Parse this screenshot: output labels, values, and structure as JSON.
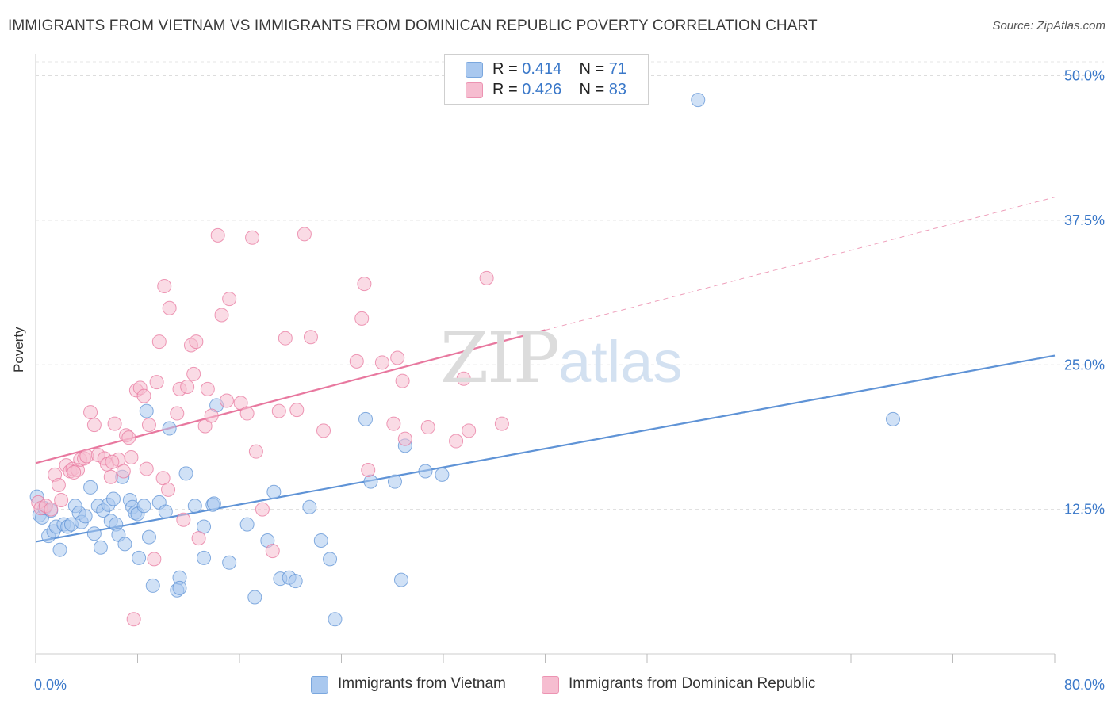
{
  "header": {
    "title": "IMMIGRANTS FROM VIETNAM VS IMMIGRANTS FROM DOMINICAN REPUBLIC POVERTY CORRELATION CHART",
    "source": "Source: ZipAtlas.com"
  },
  "watermark": {
    "zip": "ZIP",
    "atlas": "atlas"
  },
  "legend": {
    "rows": [
      {
        "r_label": "R =",
        "r_value": "0.414",
        "n_label": "N =",
        "n_value": "71",
        "color": "#a9c8ef",
        "stroke": "#7aa7de"
      },
      {
        "r_label": "R =",
        "r_value": "0.426",
        "n_label": "N =",
        "n_value": "83",
        "color": "#f6bdd0",
        "stroke": "#ec93b2"
      }
    ]
  },
  "bottom_legend": [
    {
      "label": "Immigrants from Vietnam",
      "color": "#a9c8ef",
      "stroke": "#7aa7de"
    },
    {
      "label": "Immigrants from Dominican Republic",
      "color": "#f6bdd0",
      "stroke": "#ec93b2"
    }
  ],
  "chart_data": {
    "type": "scatter",
    "title": "IMMIGRANTS FROM VIETNAM VS IMMIGRANTS FROM DOMINICAN REPUBLIC POVERTY CORRELATION CHART",
    "ylabel": "Poverty",
    "xlabel": "",
    "xlim": [
      0,
      80
    ],
    "ylim": [
      0,
      51.2
    ],
    "x_tick_labels": [
      "0.0%",
      "80.0%"
    ],
    "y_ticks": [
      12.5,
      25.0,
      37.5,
      50.0
    ],
    "y_tick_labels": [
      "12.5%",
      "25.0%",
      "37.5%",
      "50.0%"
    ],
    "grid": true,
    "legend_position": "top-center",
    "series": [
      {
        "name": "Immigrants from Vietnam",
        "color": "#5f93d6",
        "fill": "#a9c8ef",
        "trend": {
          "x0": 0,
          "y0": 9.7,
          "x1": 80,
          "y1": 25.8,
          "dashed_from": null
        },
        "points": [
          [
            0.1,
            13.6
          ],
          [
            0.3,
            12.0
          ],
          [
            0.5,
            11.8
          ],
          [
            0.7,
            12.6
          ],
          [
            1.0,
            10.2
          ],
          [
            1.2,
            12.4
          ],
          [
            1.4,
            10.6
          ],
          [
            1.6,
            11.0
          ],
          [
            1.9,
            9.0
          ],
          [
            2.2,
            11.2
          ],
          [
            2.5,
            11.0
          ],
          [
            2.8,
            11.2
          ],
          [
            3.1,
            12.8
          ],
          [
            3.4,
            12.2
          ],
          [
            3.6,
            11.4
          ],
          [
            3.9,
            11.9
          ],
          [
            4.3,
            14.4
          ],
          [
            4.6,
            10.4
          ],
          [
            4.9,
            12.8
          ],
          [
            5.1,
            9.2
          ],
          [
            5.3,
            12.4
          ],
          [
            5.7,
            12.9
          ],
          [
            5.9,
            11.5
          ],
          [
            6.1,
            13.4
          ],
          [
            6.3,
            11.2
          ],
          [
            6.5,
            10.3
          ],
          [
            6.8,
            15.3
          ],
          [
            7.0,
            9.5
          ],
          [
            7.4,
            13.3
          ],
          [
            7.6,
            12.7
          ],
          [
            7.8,
            12.2
          ],
          [
            8.0,
            12.1
          ],
          [
            8.1,
            8.3
          ],
          [
            8.5,
            12.8
          ],
          [
            8.9,
            10.1
          ],
          [
            9.2,
            5.9
          ],
          [
            9.7,
            13.1
          ],
          [
            10.2,
            12.3
          ],
          [
            10.5,
            19.5
          ],
          [
            11.1,
            5.5
          ],
          [
            11.3,
            6.6
          ],
          [
            11.3,
            5.7
          ],
          [
            11.8,
            15.6
          ],
          [
            12.5,
            12.8
          ],
          [
            13.2,
            11.0
          ],
          [
            13.2,
            8.3
          ],
          [
            13.9,
            12.9
          ],
          [
            14.0,
            13.0
          ],
          [
            14.2,
            21.5
          ],
          [
            15.2,
            7.9
          ],
          [
            16.6,
            11.2
          ],
          [
            17.2,
            4.9
          ],
          [
            18.2,
            9.8
          ],
          [
            18.7,
            14.0
          ],
          [
            19.2,
            6.5
          ],
          [
            19.9,
            6.6
          ],
          [
            20.4,
            6.3
          ],
          [
            21.5,
            12.7
          ],
          [
            22.4,
            9.8
          ],
          [
            23.1,
            8.2
          ],
          [
            23.5,
            3.0
          ],
          [
            25.9,
            20.3
          ],
          [
            26.3,
            14.9
          ],
          [
            28.2,
            14.9
          ],
          [
            28.7,
            6.4
          ],
          [
            29.0,
            18.0
          ],
          [
            30.6,
            15.8
          ],
          [
            31.9,
            15.5
          ],
          [
            52.0,
            47.9
          ],
          [
            67.3,
            20.3
          ],
          [
            8.7,
            21.0
          ]
        ]
      },
      {
        "name": "Immigrants from Dominican Republic",
        "color": "#e8789f",
        "fill": "#f6bdd0",
        "trend": {
          "x0": 0,
          "y0": 16.5,
          "x1": 80,
          "y1": 39.5,
          "dashed_from": 40
        },
        "points": [
          [
            0.2,
            13.1
          ],
          [
            0.4,
            12.6
          ],
          [
            0.8,
            12.8
          ],
          [
            1.2,
            12.5
          ],
          [
            1.5,
            15.5
          ],
          [
            1.8,
            14.6
          ],
          [
            2.0,
            13.3
          ],
          [
            2.4,
            16.3
          ],
          [
            2.7,
            15.8
          ],
          [
            2.9,
            16.0
          ],
          [
            3.3,
            15.9
          ],
          [
            3.5,
            16.8
          ],
          [
            3.8,
            16.9
          ],
          [
            4.0,
            17.1
          ],
          [
            4.3,
            20.9
          ],
          [
            4.6,
            19.8
          ],
          [
            4.9,
            17.2
          ],
          [
            5.4,
            16.9
          ],
          [
            5.6,
            16.4
          ],
          [
            5.9,
            15.3
          ],
          [
            6.2,
            19.9
          ],
          [
            6.5,
            16.8
          ],
          [
            6.9,
            15.8
          ],
          [
            7.1,
            18.9
          ],
          [
            7.3,
            18.7
          ],
          [
            7.5,
            17.0
          ],
          [
            7.7,
            3.0
          ],
          [
            7.9,
            22.8
          ],
          [
            8.2,
            23.0
          ],
          [
            8.5,
            22.3
          ],
          [
            8.7,
            16.0
          ],
          [
            8.9,
            19.8
          ],
          [
            9.3,
            8.2
          ],
          [
            9.5,
            23.5
          ],
          [
            9.7,
            27.0
          ],
          [
            10.0,
            15.2
          ],
          [
            10.1,
            31.8
          ],
          [
            10.4,
            14.2
          ],
          [
            10.5,
            29.9
          ],
          [
            11.1,
            20.8
          ],
          [
            11.3,
            22.9
          ],
          [
            11.6,
            11.6
          ],
          [
            11.9,
            23.1
          ],
          [
            12.2,
            26.7
          ],
          [
            12.4,
            24.2
          ],
          [
            12.6,
            27.0
          ],
          [
            12.8,
            10.0
          ],
          [
            13.3,
            19.7
          ],
          [
            13.5,
            22.9
          ],
          [
            13.8,
            20.6
          ],
          [
            14.3,
            36.2
          ],
          [
            14.6,
            29.3
          ],
          [
            15.0,
            21.9
          ],
          [
            15.2,
            30.7
          ],
          [
            16.1,
            21.7
          ],
          [
            16.6,
            20.8
          ],
          [
            17.0,
            36.0
          ],
          [
            17.3,
            17.5
          ],
          [
            17.8,
            12.5
          ],
          [
            18.6,
            8.9
          ],
          [
            19.1,
            21.0
          ],
          [
            19.6,
            27.3
          ],
          [
            20.5,
            21.1
          ],
          [
            21.1,
            36.3
          ],
          [
            21.6,
            27.4
          ],
          [
            22.6,
            19.3
          ],
          [
            25.2,
            25.3
          ],
          [
            25.6,
            29.0
          ],
          [
            25.8,
            32.0
          ],
          [
            26.1,
            15.9
          ],
          [
            27.2,
            25.2
          ],
          [
            28.1,
            19.9
          ],
          [
            28.4,
            25.6
          ],
          [
            28.8,
            23.6
          ],
          [
            29.0,
            18.6
          ],
          [
            30.8,
            19.6
          ],
          [
            33.0,
            18.4
          ],
          [
            33.6,
            23.8
          ],
          [
            34.0,
            19.3
          ],
          [
            35.4,
            32.5
          ],
          [
            36.6,
            19.9
          ],
          [
            3.0,
            15.7
          ],
          [
            6.0,
            16.6
          ]
        ]
      }
    ]
  }
}
